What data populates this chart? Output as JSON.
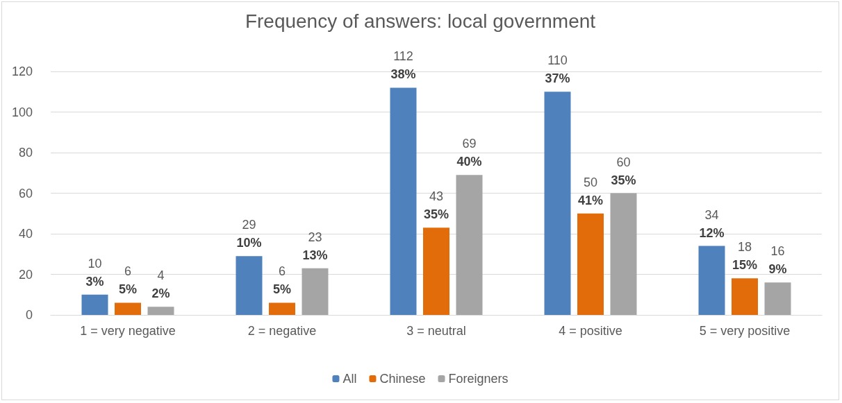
{
  "chart_data": {
    "type": "bar",
    "title": "Frequency of answers: local government",
    "categories": [
      "1 = very negative",
      "2 = negative",
      "3 = neutral",
      "4 = positive",
      "5 = very positive"
    ],
    "series": [
      {
        "name": "All",
        "color": "#4f81bd",
        "values": [
          10,
          29,
          112,
          110,
          34
        ],
        "value_labels": [
          "10\n3%",
          "29\n10%",
          "112\n38%",
          "110\n37%",
          "34\n12%"
        ]
      },
      {
        "name": "Chinese",
        "color": "#e36c0a",
        "values": [
          6,
          6,
          43,
          50,
          18
        ],
        "value_labels": [
          "6\n5%",
          "6\n5%",
          "43\n35%",
          "50\n41%",
          "18\n15%"
        ]
      },
      {
        "name": "Foreigners",
        "color": "#a5a5a5",
        "values": [
          4,
          23,
          69,
          60,
          16
        ],
        "value_labels": [
          "4\n2%",
          "23\n13%",
          "69\n40%",
          "60\n35%",
          "16\n9%"
        ]
      }
    ],
    "ylim": [
      0,
      120
    ],
    "yticks": [
      0,
      20,
      40,
      60,
      80,
      100,
      120
    ],
    "grid": "y",
    "legend": "bottom"
  }
}
